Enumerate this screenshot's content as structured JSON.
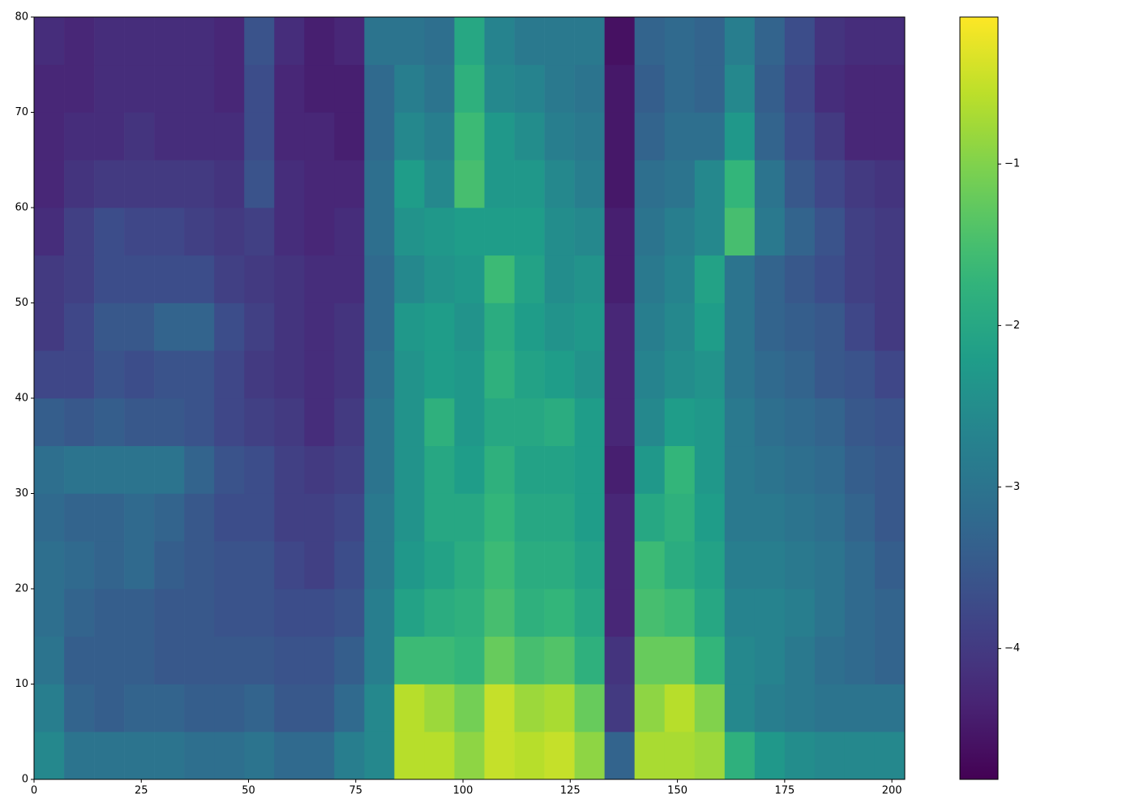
{
  "chart_data": {
    "type": "heatmap",
    "colormap": "viridis",
    "x_edges": [
      0,
      7,
      14,
      21,
      28,
      35,
      42,
      49,
      56,
      63,
      70,
      77,
      84,
      91,
      98,
      105,
      112,
      119,
      126,
      133,
      140,
      147,
      154,
      161,
      168,
      175,
      182,
      189,
      196,
      203
    ],
    "y_edges": [
      0,
      5,
      10,
      15,
      20,
      25,
      30,
      35,
      40,
      45,
      50,
      55,
      60,
      65,
      70,
      75,
      80
    ],
    "values": [
      [
        -2.6,
        -3.0,
        -3.0,
        -3.0,
        -3.0,
        -3.1,
        -3.1,
        -3.0,
        -3.2,
        -3.2,
        -2.8,
        -2.6,
        -0.6,
        -0.6,
        -0.9,
        -0.5,
        -0.6,
        -0.5,
        -0.9,
        -3.3,
        -0.7,
        -0.7,
        -0.8,
        -1.8,
        -2.3,
        -2.5,
        -2.6,
        -2.6,
        -2.6
      ],
      [
        -2.8,
        -3.3,
        -3.4,
        -3.3,
        -3.3,
        -3.4,
        -3.4,
        -3.3,
        -3.5,
        -3.5,
        -3.2,
        -2.6,
        -0.6,
        -0.8,
        -1.1,
        -0.5,
        -0.8,
        -0.7,
        -1.2,
        -4.0,
        -0.9,
        -0.6,
        -1.0,
        -2.6,
        -2.8,
        -2.9,
        -3.0,
        -3.0,
        -3.0
      ],
      [
        -3.0,
        -3.4,
        -3.4,
        -3.4,
        -3.5,
        -3.5,
        -3.5,
        -3.5,
        -3.6,
        -3.6,
        -3.4,
        -2.8,
        -1.6,
        -1.6,
        -1.7,
        -1.2,
        -1.5,
        -1.4,
        -1.8,
        -4.1,
        -1.2,
        -1.2,
        -1.7,
        -2.6,
        -2.7,
        -2.9,
        -3.1,
        -3.2,
        -3.3
      ],
      [
        -3.1,
        -3.3,
        -3.4,
        -3.4,
        -3.5,
        -3.5,
        -3.6,
        -3.6,
        -3.7,
        -3.7,
        -3.6,
        -2.8,
        -2.1,
        -1.9,
        -1.8,
        -1.5,
        -1.8,
        -1.7,
        -2.0,
        -4.3,
        -1.5,
        -1.6,
        -2.0,
        -2.7,
        -2.7,
        -2.8,
        -3.0,
        -3.2,
        -3.3
      ],
      [
        -3.1,
        -3.2,
        -3.3,
        -3.2,
        -3.4,
        -3.5,
        -3.6,
        -3.6,
        -3.8,
        -3.9,
        -3.7,
        -2.9,
        -2.3,
        -2.1,
        -1.9,
        -1.6,
        -1.9,
        -1.9,
        -2.1,
        -4.3,
        -1.6,
        -1.9,
        -2.1,
        -2.8,
        -2.8,
        -2.9,
        -3.0,
        -3.2,
        -3.4
      ],
      [
        -3.2,
        -3.3,
        -3.3,
        -3.2,
        -3.3,
        -3.5,
        -3.7,
        -3.7,
        -3.9,
        -3.9,
        -3.8,
        -2.9,
        -2.4,
        -2.0,
        -2.0,
        -1.7,
        -2.0,
        -2.0,
        -2.2,
        -4.3,
        -2.0,
        -1.8,
        -2.2,
        -2.9,
        -2.9,
        -3.0,
        -3.1,
        -3.3,
        -3.5
      ],
      [
        -3.1,
        -3.0,
        -3.0,
        -3.0,
        -3.0,
        -3.3,
        -3.6,
        -3.7,
        -3.9,
        -4.0,
        -3.9,
        -3.0,
        -2.4,
        -2.0,
        -2.2,
        -1.8,
        -2.1,
        -2.1,
        -2.2,
        -4.4,
        -2.3,
        -1.7,
        -2.3,
        -2.9,
        -3.0,
        -3.1,
        -3.2,
        -3.4,
        -3.5
      ],
      [
        -3.4,
        -3.5,
        -3.4,
        -3.5,
        -3.5,
        -3.6,
        -3.8,
        -3.9,
        -4.0,
        -4.2,
        -4.0,
        -3.0,
        -2.4,
        -1.8,
        -2.3,
        -2.0,
        -2.0,
        -1.9,
        -2.2,
        -4.3,
        -2.6,
        -2.2,
        -2.3,
        -2.9,
        -3.1,
        -3.2,
        -3.3,
        -3.5,
        -3.6
      ],
      [
        -3.8,
        -3.8,
        -3.6,
        -3.7,
        -3.6,
        -3.6,
        -3.8,
        -4.0,
        -4.1,
        -4.2,
        -4.1,
        -3.1,
        -2.4,
        -2.2,
        -2.3,
        -1.8,
        -2.1,
        -2.2,
        -2.4,
        -4.3,
        -2.7,
        -2.5,
        -2.4,
        -3.0,
        -3.2,
        -3.3,
        -3.5,
        -3.6,
        -3.8
      ],
      [
        -4.0,
        -3.8,
        -3.5,
        -3.5,
        -3.3,
        -3.3,
        -3.7,
        -3.9,
        -4.1,
        -4.2,
        -4.1,
        -3.2,
        -2.3,
        -2.2,
        -2.4,
        -1.9,
        -2.2,
        -2.4,
        -2.3,
        -4.3,
        -2.8,
        -2.6,
        -2.2,
        -3.0,
        -3.3,
        -3.4,
        -3.5,
        -3.8,
        -4.0
      ],
      [
        -4.0,
        -3.9,
        -3.7,
        -3.7,
        -3.7,
        -3.7,
        -3.9,
        -4.0,
        -4.1,
        -4.2,
        -4.2,
        -3.2,
        -2.6,
        -2.4,
        -2.3,
        -1.6,
        -2.1,
        -2.5,
        -2.4,
        -4.4,
        -2.9,
        -2.7,
        -2.1,
        -3.0,
        -3.3,
        -3.5,
        -3.7,
        -3.9,
        -4.0
      ],
      [
        -4.2,
        -3.9,
        -3.7,
        -3.8,
        -3.8,
        -3.9,
        -4.0,
        -3.9,
        -4.2,
        -4.3,
        -4.2,
        -3.1,
        -2.4,
        -2.3,
        -2.2,
        -2.2,
        -2.2,
        -2.5,
        -2.6,
        -4.4,
        -3.0,
        -2.8,
        -2.6,
        -1.5,
        -2.9,
        -3.3,
        -3.6,
        -3.9,
        -4.0
      ],
      [
        -4.3,
        -4.1,
        -4.0,
        -4.0,
        -4.0,
        -4.0,
        -4.1,
        -3.6,
        -4.2,
        -4.3,
        -4.3,
        -3.1,
        -2.2,
        -2.6,
        -1.5,
        -2.3,
        -2.3,
        -2.6,
        -2.8,
        -4.5,
        -3.1,
        -3.0,
        -2.6,
        -1.7,
        -3.0,
        -3.5,
        -3.8,
        -4.0,
        -4.1
      ],
      [
        -4.3,
        -4.2,
        -4.2,
        -4.1,
        -4.2,
        -4.2,
        -4.2,
        -3.7,
        -4.3,
        -4.3,
        -4.4,
        -3.2,
        -2.6,
        -2.8,
        -1.6,
        -2.3,
        -2.5,
        -2.8,
        -2.9,
        -4.5,
        -3.3,
        -3.1,
        -3.1,
        -2.3,
        -3.3,
        -3.7,
        -4.0,
        -4.3,
        -4.3
      ],
      [
        -4.3,
        -4.3,
        -4.2,
        -4.2,
        -4.2,
        -4.2,
        -4.3,
        -3.7,
        -4.3,
        -4.4,
        -4.4,
        -3.2,
        -2.8,
        -3.0,
        -1.8,
        -2.6,
        -2.7,
        -2.9,
        -3.0,
        -4.5,
        -3.4,
        -3.2,
        -3.3,
        -2.6,
        -3.4,
        -3.8,
        -4.2,
        -4.3,
        -4.3
      ],
      [
        -4.2,
        -4.3,
        -4.2,
        -4.2,
        -4.2,
        -4.2,
        -4.3,
        -3.6,
        -4.2,
        -4.4,
        -4.3,
        -3.0,
        -3.0,
        -3.1,
        -2.0,
        -2.7,
        -2.9,
        -2.9,
        -2.9,
        -4.6,
        -3.3,
        -3.2,
        -3.3,
        -2.8,
        -3.3,
        -3.7,
        -4.1,
        -4.2,
        -4.2
      ]
    ],
    "xlim": [
      0,
      203
    ],
    "ylim": [
      0,
      80
    ],
    "xticks": [
      0,
      25,
      50,
      75,
      100,
      125,
      150,
      175,
      200
    ],
    "yticks": [
      0,
      10,
      20,
      30,
      40,
      50,
      60,
      70,
      80
    ],
    "colorbar": {
      "clim": [
        -4.81,
        -0.09
      ],
      "ticks": [
        {
          "value": -4,
          "label": "−4"
        },
        {
          "value": -3,
          "label": "−3"
        },
        {
          "value": -2,
          "label": "−2"
        },
        {
          "value": -1,
          "label": "−1"
        }
      ]
    }
  }
}
